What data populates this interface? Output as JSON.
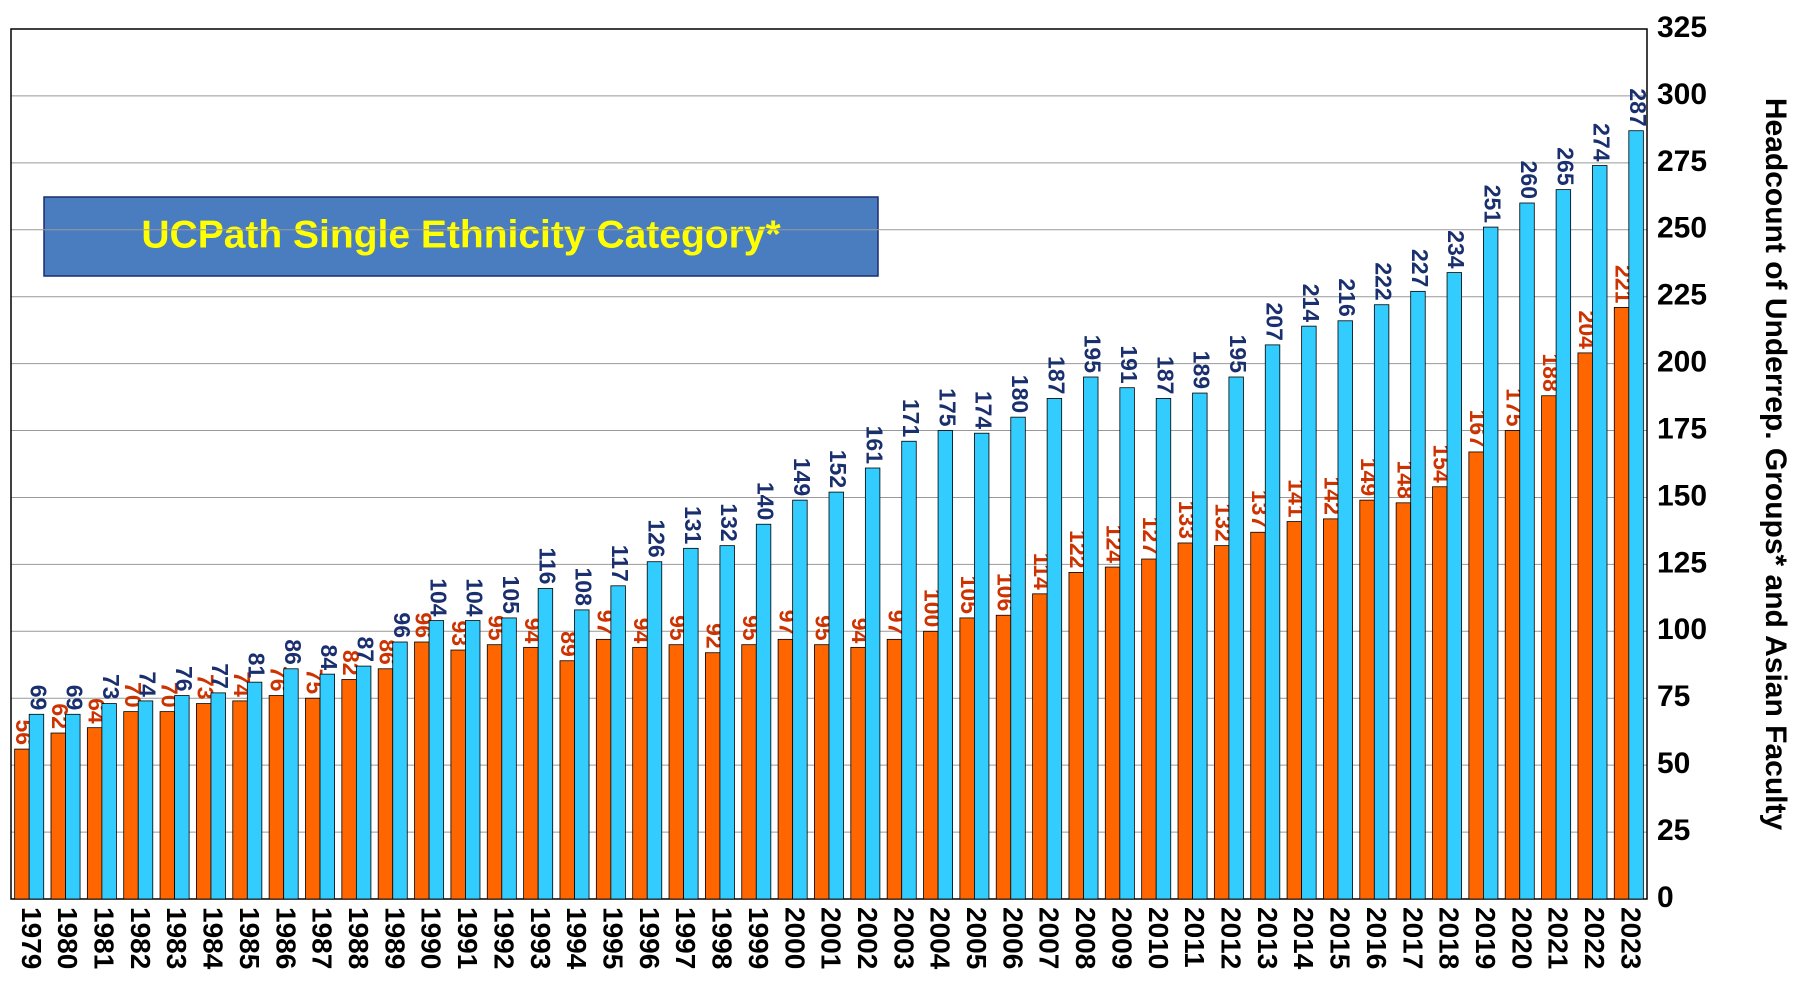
{
  "chart_data": {
    "type": "bar",
    "annotation": "UCPath Single Ethnicity Category*",
    "y_label": "Headcount of Underrep. Groups* and Asian Faculty",
    "categories": [
      "1979",
      "1980",
      "1981",
      "1982",
      "1983",
      "1984",
      "1985",
      "1986",
      "1987",
      "1988",
      "1989",
      "1990",
      "1991",
      "1992",
      "1993",
      "1994",
      "1995",
      "1996",
      "1997",
      "1998",
      "1999",
      "2000",
      "2001",
      "2002",
      "2003",
      "2004",
      "2005",
      "2006",
      "2007",
      "2008",
      "2009",
      "2010",
      "2011",
      "2012",
      "2013",
      "2014",
      "2015",
      "2016",
      "2017",
      "2018",
      "2019",
      "2020",
      "2021",
      "2022",
      "2023"
    ],
    "series": [
      {
        "color": "#ff6600",
        "label_color": "#cc3300",
        "values": [
          56,
          62,
          64,
          70,
          70,
          73,
          74,
          76,
          75,
          82,
          86,
          96,
          93,
          95,
          94,
          89,
          97,
          94,
          95,
          92,
          95,
          97,
          95,
          94,
          97,
          100,
          105,
          106,
          114,
          122,
          124,
          127,
          133,
          132,
          137,
          141,
          142,
          149,
          148,
          154,
          167,
          175,
          188,
          204,
          221
        ]
      },
      {
        "color": "#33ccff",
        "label_color": "#1a2f6e",
        "values": [
          69,
          69,
          73,
          74,
          76,
          77,
          81,
          86,
          84,
          87,
          96,
          104,
          104,
          105,
          116,
          108,
          117,
          126,
          131,
          132,
          140,
          149,
          152,
          161,
          171,
          175,
          174,
          180,
          187,
          195,
          191,
          187,
          189,
          195,
          207,
          214,
          216,
          222,
          227,
          234,
          251,
          260,
          265,
          274,
          287
        ]
      }
    ],
    "ylim": [
      0,
      325
    ],
    "yticks": [
      0,
      25,
      50,
      75,
      100,
      125,
      150,
      175,
      200,
      225,
      250,
      275,
      300,
      325
    ],
    "grid": true
  }
}
